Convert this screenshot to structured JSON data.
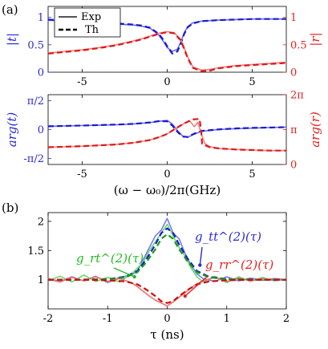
{
  "chart_data": [
    {
      "id": "a_top",
      "panel_label": "(a)",
      "type": "line",
      "xlim": [
        -7,
        7
      ],
      "ylim_left": [
        0,
        1.2
      ],
      "ylim_right": [
        0,
        1.2
      ],
      "x_ticks": [
        -5,
        0,
        5
      ],
      "x_tick_labels": [
        "-5",
        "0",
        "5"
      ],
      "left_ticks": [
        0,
        0.5,
        1
      ],
      "left_tick_labels": [
        "0",
        "0.5",
        "1"
      ],
      "right_ticks": [
        0,
        0.5,
        1
      ],
      "right_tick_labels": [
        "0",
        "0.5",
        "1"
      ],
      "ylabel_left": "|t|",
      "ylabel_right": "|r|",
      "left_color": "#2b2bd6",
      "right_color": "#e62020",
      "legend": {
        "placement": "top-left",
        "entries": [
          "Exp",
          "Th"
        ]
      },
      "series": [
        {
          "name": "",
          "axis": "left",
          "style": "solid",
          "color": "#6a6af0",
          "x": [
            -7,
            -6,
            -5,
            -4,
            -3,
            -2,
            -1.5,
            -1,
            -0.5,
            -0.2,
            0,
            0.3,
            0.6,
            0.8,
            1.0,
            1.2,
            1.5,
            2,
            3,
            4,
            5,
            6,
            7
          ],
          "y": [
            0.95,
            0.93,
            0.92,
            0.9,
            0.88,
            0.86,
            0.84,
            0.8,
            0.68,
            0.55,
            0.45,
            0.38,
            0.42,
            0.55,
            0.72,
            0.83,
            0.9,
            0.93,
            0.95,
            0.96,
            0.97,
            0.97,
            0.97
          ]
        },
        {
          "name": "",
          "axis": "left",
          "style": "dashed",
          "color": "#1a1acc",
          "x": [
            -7,
            -6,
            -5,
            -4,
            -3,
            -2,
            -1.5,
            -1,
            -0.5,
            -0.2,
            0,
            0.3,
            0.6,
            0.8,
            1.0,
            1.2,
            1.5,
            2,
            3,
            4,
            5,
            6,
            7
          ],
          "y": [
            0.96,
            0.94,
            0.93,
            0.91,
            0.89,
            0.87,
            0.85,
            0.81,
            0.7,
            0.58,
            0.47,
            0.34,
            0.38,
            0.52,
            0.7,
            0.82,
            0.89,
            0.93,
            0.95,
            0.96,
            0.97,
            0.97,
            0.97
          ]
        },
        {
          "name": "",
          "axis": "right",
          "style": "solid",
          "color": "#f08080",
          "x": [
            -7,
            -6,
            -5,
            -4,
            -3,
            -2,
            -1.5,
            -1,
            -0.5,
            0,
            0.4,
            0.8,
            1.0,
            1.2,
            1.5,
            2,
            2.5,
            3,
            4,
            5,
            6,
            7
          ],
          "y": [
            0.35,
            0.38,
            0.41,
            0.45,
            0.5,
            0.57,
            0.61,
            0.66,
            0.71,
            0.74,
            0.72,
            0.6,
            0.45,
            0.28,
            0.1,
            0.04,
            0.05,
            0.08,
            0.12,
            0.14,
            0.16,
            0.18
          ]
        },
        {
          "name": "",
          "axis": "right",
          "style": "dashed",
          "color": "#e01818",
          "x": [
            -7,
            -6,
            -5,
            -4,
            -3,
            -2,
            -1.5,
            -1,
            -0.5,
            0,
            0.4,
            0.8,
            1.0,
            1.2,
            1.5,
            2,
            2.5,
            3,
            4,
            5,
            6,
            7
          ],
          "y": [
            0.34,
            0.37,
            0.4,
            0.44,
            0.49,
            0.56,
            0.6,
            0.65,
            0.7,
            0.73,
            0.71,
            0.58,
            0.42,
            0.26,
            0.08,
            0.02,
            0.03,
            0.07,
            0.11,
            0.13,
            0.15,
            0.17
          ]
        }
      ]
    },
    {
      "id": "a_bottom",
      "panel_label": "",
      "type": "line",
      "xlim": [
        -7,
        7
      ],
      "ylim_left": [
        -1.9,
        1.9
      ],
      "ylim_right": [
        0,
        6.2832
      ],
      "x_ticks": [
        -5,
        0,
        5
      ],
      "x_tick_labels": [
        "-5",
        "0",
        "5"
      ],
      "left_ticks": [
        -1.5708,
        0,
        1.5708
      ],
      "left_tick_labels": [
        "-π/2",
        "0",
        "π/2"
      ],
      "right_ticks": [
        0,
        3.1416,
        6.2832
      ],
      "right_tick_labels": [
        "0",
        "π",
        "2π"
      ],
      "ylabel_left": "arg(t)",
      "ylabel_right": "arg(r)",
      "xlabel": "(ω − ω₀)/2π(GHz)",
      "left_color": "#2b2bd6",
      "right_color": "#e62020",
      "series": [
        {
          "name": "",
          "axis": "left",
          "style": "solid",
          "color": "#6a6af0",
          "x": [
            -7,
            -5,
            -3,
            -2,
            -1,
            -0.5,
            0,
            0.3,
            0.6,
            0.9,
            1.2,
            1.6,
            2,
            3,
            4,
            5,
            6,
            7
          ],
          "y": [
            0.18,
            0.22,
            0.26,
            0.3,
            0.38,
            0.45,
            0.5,
            0.3,
            -0.05,
            -0.35,
            -0.42,
            -0.25,
            -0.1,
            0.0,
            0.05,
            0.08,
            0.11,
            0.13
          ]
        },
        {
          "name": "",
          "axis": "left",
          "style": "dashed",
          "color": "#1a1acc",
          "x": [
            -7,
            -5,
            -3,
            -2,
            -1,
            -0.5,
            0,
            0.3,
            0.6,
            0.9,
            1.2,
            1.6,
            2,
            3,
            4,
            5,
            6,
            7
          ],
          "y": [
            0.18,
            0.22,
            0.27,
            0.31,
            0.39,
            0.46,
            0.45,
            0.22,
            -0.12,
            -0.38,
            -0.4,
            -0.22,
            -0.08,
            0.01,
            0.06,
            0.09,
            0.11,
            0.13
          ]
        },
        {
          "name": "",
          "axis": "right",
          "style": "solid",
          "color": "#f08080",
          "x": [
            -7,
            -5,
            -3,
            -2,
            -1,
            -0.5,
            0,
            0.5,
            1.0,
            1.3,
            1.6,
            1.8,
            2.0,
            2.2,
            2.5,
            3,
            4,
            5,
            6,
            7
          ],
          "y": [
            1.55,
            1.65,
            1.8,
            1.95,
            2.2,
            2.45,
            2.75,
            3.2,
            3.7,
            3.95,
            3.4,
            3.8,
            2.8,
            1.9,
            1.6,
            1.45,
            1.35,
            1.3,
            1.25,
            1.25
          ]
        },
        {
          "name": "",
          "axis": "right",
          "style": "dashed",
          "color": "#e01818",
          "x": [
            -7,
            -5,
            -3,
            -2,
            -1,
            -0.5,
            0,
            0.5,
            1.0,
            1.5,
            1.9,
            2.0,
            2.05,
            2.5,
            3,
            4,
            5,
            6,
            7
          ],
          "y": [
            1.55,
            1.65,
            1.8,
            1.95,
            2.2,
            2.45,
            2.75,
            3.25,
            3.7,
            4.05,
            4.1,
            3.0,
            1.85,
            1.55,
            1.45,
            1.35,
            1.3,
            1.25,
            1.25
          ]
        }
      ]
    },
    {
      "id": "b",
      "panel_label": "(b)",
      "type": "line",
      "xlim": [
        -2,
        2
      ],
      "ylim": [
        0.5,
        2.15
      ],
      "x_ticks": [
        -2,
        -1,
        0,
        1,
        2
      ],
      "x_tick_labels": [
        "-2",
        "-1",
        "0",
        "1",
        "2"
      ],
      "y_ticks": [
        1,
        1.5,
        2
      ],
      "y_tick_labels": [
        "1",
        "1.5",
        "2"
      ],
      "xlabel": "τ (ns)",
      "annotations": [
        {
          "text": "g_tt^(2)(τ)",
          "color": "#2b2bd6"
        },
        {
          "text": "g_rt^(2)(τ)",
          "color": "#22bb22"
        },
        {
          "text": "g_rr^(2)(τ)",
          "color": "#e62020"
        }
      ],
      "series": [
        {
          "name": "",
          "style": "solid",
          "color": "#7a7af5",
          "x": [
            -2,
            -1.8,
            -1.6,
            -1.4,
            -1.2,
            -1.0,
            -0.8,
            -0.6,
            -0.5,
            -0.4,
            -0.3,
            -0.2,
            -0.1,
            0,
            0.1,
            0.2,
            0.3,
            0.4,
            0.5,
            0.6,
            0.8,
            1.0,
            1.2,
            1.4,
            1.6,
            1.8,
            2
          ],
          "y": [
            1.02,
            0.97,
            1.05,
            0.98,
            1.06,
            0.95,
            1.04,
            1.08,
            1.15,
            1.35,
            1.55,
            1.75,
            1.85,
            2.05,
            1.8,
            1.7,
            1.45,
            1.25,
            1.1,
            1.02,
            0.97,
            1.05,
            0.98,
            1.03,
            0.99,
            1.02,
            1.0
          ]
        },
        {
          "name": "",
          "style": "solid",
          "color": "#66dd66",
          "x": [
            -2,
            -1.8,
            -1.6,
            -1.4,
            -1.2,
            -1.0,
            -0.8,
            -0.6,
            -0.5,
            -0.4,
            -0.3,
            -0.2,
            -0.1,
            0,
            0.1,
            0.2,
            0.3,
            0.4,
            0.5,
            0.6,
            0.8,
            1.0,
            1.2,
            1.4,
            1.6,
            1.8,
            2
          ],
          "y": [
            0.98,
            1.06,
            0.96,
            1.08,
            0.97,
            1.04,
            0.96,
            1.1,
            1.2,
            1.3,
            1.5,
            1.65,
            1.8,
            1.95,
            1.75,
            1.55,
            1.4,
            1.2,
            1.05,
            0.96,
            1.06,
            0.95,
            1.05,
            0.97,
            1.04,
            0.98,
            1.01
          ]
        },
        {
          "name": "",
          "style": "solid",
          "color": "#f07070",
          "x": [
            -2,
            -1.8,
            -1.6,
            -1.4,
            -1.2,
            -1.0,
            -0.8,
            -0.6,
            -0.5,
            -0.4,
            -0.3,
            -0.2,
            -0.1,
            0,
            0.1,
            0.2,
            0.3,
            0.4,
            0.5,
            0.6,
            0.8,
            1.0,
            1.2,
            1.4,
            1.6,
            1.8,
            2
          ],
          "y": [
            1.01,
            0.96,
            1.04,
            0.98,
            1.05,
            0.97,
            1.02,
            0.95,
            0.88,
            0.8,
            0.72,
            0.65,
            0.6,
            0.55,
            0.62,
            0.7,
            0.78,
            0.86,
            0.93,
            0.98,
            1.04,
            0.97,
            1.03,
            0.98,
            1.02,
            0.99,
            1.0
          ]
        },
        {
          "name": "",
          "style": "dashed",
          "color": "#1a1acc",
          "x": [
            -2,
            -1.5,
            -1.0,
            -0.7,
            -0.5,
            -0.35,
            -0.2,
            -0.1,
            0,
            0.1,
            0.2,
            0.35,
            0.5,
            0.7,
            1.0,
            1.5,
            2
          ],
          "y": [
            1.0,
            1.0,
            1.01,
            1.05,
            1.15,
            1.35,
            1.6,
            1.8,
            1.88,
            1.8,
            1.6,
            1.35,
            1.15,
            1.05,
            1.01,
            1.0,
            1.0
          ]
        },
        {
          "name": "",
          "style": "dashed",
          "color": "#1a9a1a",
          "x": [
            -2,
            -1.5,
            -1.0,
            -0.7,
            -0.5,
            -0.35,
            -0.2,
            -0.1,
            0,
            0.1,
            0.2,
            0.35,
            0.5,
            0.7,
            1.0,
            1.5,
            2
          ],
          "y": [
            1.0,
            1.0,
            1.01,
            1.04,
            1.13,
            1.3,
            1.52,
            1.7,
            1.78,
            1.7,
            1.52,
            1.3,
            1.13,
            1.04,
            1.01,
            1.0,
            1.0
          ]
        },
        {
          "name": "",
          "style": "dashed",
          "color": "#cc1010",
          "x": [
            -2,
            -1.5,
            -1.0,
            -0.7,
            -0.5,
            -0.35,
            -0.2,
            -0.1,
            0,
            0.1,
            0.2,
            0.35,
            0.5,
            0.7,
            1.0,
            1.5,
            2
          ],
          "y": [
            1.0,
            1.0,
            0.99,
            0.97,
            0.92,
            0.83,
            0.72,
            0.63,
            0.6,
            0.63,
            0.72,
            0.83,
            0.92,
            0.97,
            0.99,
            1.0,
            1.0
          ]
        }
      ]
    }
  ]
}
